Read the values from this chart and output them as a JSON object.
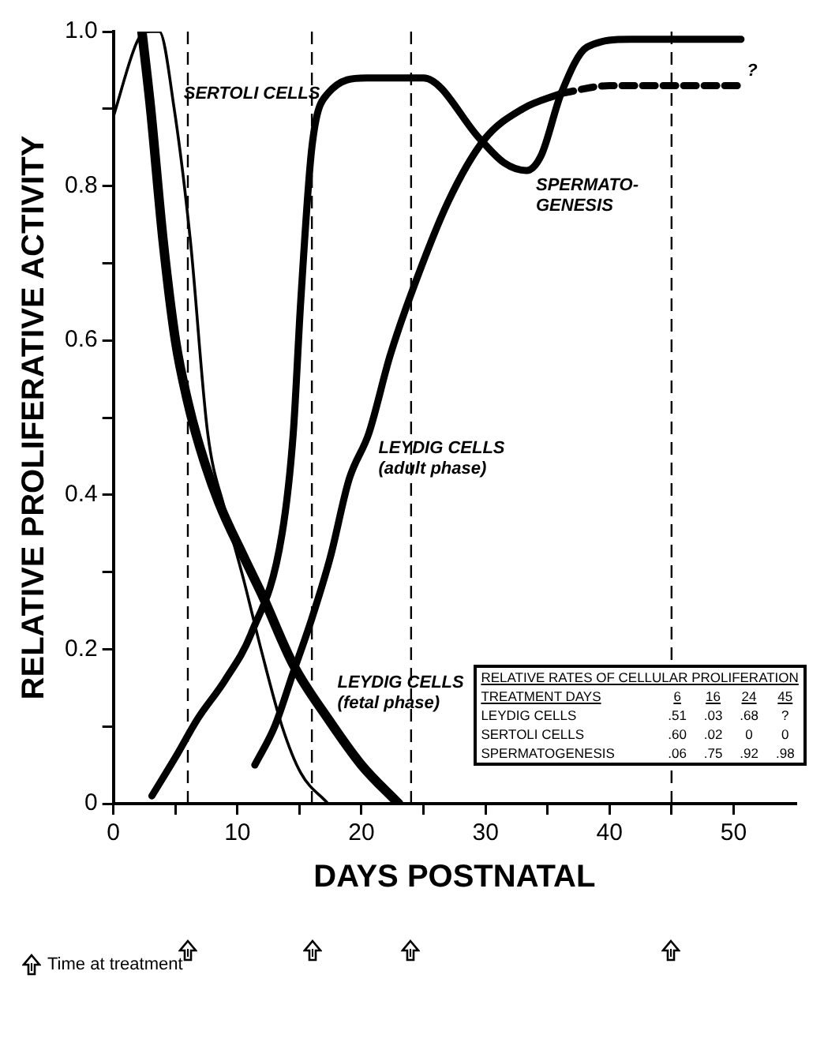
{
  "chart_data": {
    "type": "line",
    "xlabel": "DAYS POSTNATAL",
    "ylabel": "RELATIVE PROLIFERATIVE ACTIVITY",
    "xlim": [
      0,
      55
    ],
    "xticks": [
      0,
      {
        "value": 5,
        "label": null
      },
      10,
      {
        "value": 15,
        "label": null
      },
      20,
      {
        "value": 25,
        "label": null
      },
      30,
      {
        "value": 35,
        "label": null
      },
      40,
      {
        "value": 45,
        "label": null
      },
      50
    ],
    "ylim": [
      0,
      1
    ],
    "yticks": [
      0,
      {
        "value": 0.1,
        "label": null
      },
      0.2,
      {
        "value": 0.3,
        "label": null
      },
      0.4,
      {
        "value": 0.5,
        "label": null
      },
      0.6,
      {
        "value": 0.7,
        "label": null
      },
      0.8,
      {
        "value": 0.9,
        "label": null
      },
      {
        "value": 1,
        "label": "1.0"
      }
    ],
    "grid": false,
    "legend": false,
    "marker": "none",
    "series": [
      {
        "color": "#000000",
        "x": [
          0,
          2,
          3,
          3.7,
          4.9,
          6.2,
          7.6,
          9,
          10.5,
          11.9,
          13.6,
          15.1,
          17.3
        ],
        "values": [
          0.89,
          0.99,
          1.0,
          1.0,
          0.9,
          0.73,
          0.48,
          0.38,
          0.29,
          0.2,
          0.1,
          0.04,
          0
        ]
      },
      {
        "color": "#000000",
        "x": [
          2.3,
          3,
          4,
          5,
          6,
          7,
          8.5,
          10.5,
          12,
          14.5,
          17.3,
          20,
          23
        ],
        "values": [
          1.0,
          0.9,
          0.73,
          0.6,
          0.52,
          0.46,
          0.39,
          0.32,
          0.27,
          0.18,
          0.11,
          0.05,
          0
        ]
      },
      {
        "color": "#000000",
        "x": [
          3.1,
          5,
          6.8,
          9,
          11.1,
          13.6,
          14.5,
          15.1,
          16,
          17.3,
          20.4,
          25,
          29.6,
          31.5,
          33.3,
          34.5,
          36.1,
          38.2,
          41.7,
          47.9,
          50.6
        ],
        "values": [
          0.01,
          0.06,
          0.11,
          0.16,
          0.22,
          0.35,
          0.48,
          0.65,
          0.85,
          0.92,
          0.94,
          0.94,
          0.86,
          0.83,
          0.82,
          0.84,
          0.92,
          0.98,
          0.99,
          0.99,
          0.99
        ]
      },
      {
        "color": "#000000",
        "x": [
          11.4,
          13,
          14.5,
          16,
          17.5,
          19,
          20.6,
          22.3,
          24,
          27,
          29.9,
          33,
          36.1
        ],
        "values": [
          0.05,
          0.1,
          0.17,
          0.24,
          0.32,
          0.42,
          0.48,
          0.58,
          0.66,
          0.78,
          0.86,
          0.9,
          0.92
        ]
      },
      {
        "color": "#000000",
        "line_style": "dashed",
        "x": [
          36.1,
          40,
          45,
          50.3
        ],
        "values": [
          0.92,
          0.93,
          0.93,
          0.93
        ]
      }
    ],
    "ref_lines": [
      {
        "axis": "x",
        "value": 6,
        "line_style": "dashed"
      },
      {
        "axis": "x",
        "value": 16,
        "line_style": "dashed"
      },
      {
        "axis": "x",
        "value": 24,
        "line_style": "dashed"
      },
      {
        "axis": "x",
        "value": 45,
        "line_style": "dashed"
      }
    ],
    "annotations": [
      {
        "text": "SERTOLI CELLS",
        "x": 4.9,
        "y": 0.9
      },
      {
        "text": "LEYDIG CELLS\n(adult phase)",
        "x": 20.6,
        "y": 0.48
      },
      {
        "text": "LEYDIG CELLS\n(fetal phase)",
        "x": 17.3,
        "y": 0.11
      },
      {
        "text": "SPERMATO-\nGENESIS",
        "x": 33.3,
        "y": 0.82
      },
      {
        "text": "?",
        "x": 50.3,
        "y": 0.93
      },
      "RELATIVE RATES OF CELLULAR PROLIFERATION",
      "TREATMENT DAYS\t6\t16\t24\t45",
      "LEYDIG CELLS\t.51\t.03\t.68\t?",
      "SERTOLI CELLS\t.60\t.02\t0\t0",
      "SPERMATOGENESIS\t.06\t.75\t.92\t.98",
      "Time at treatment"
    ]
  }
}
